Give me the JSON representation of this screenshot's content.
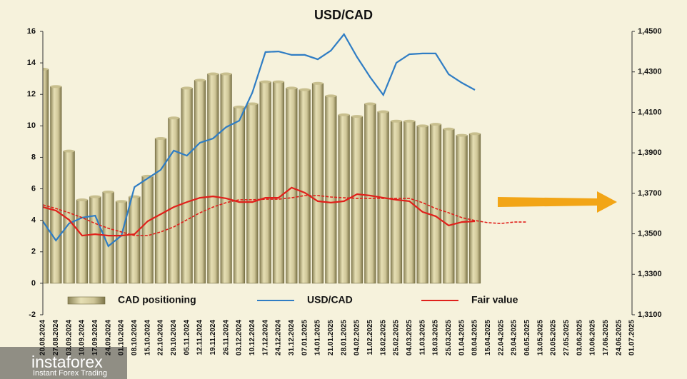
{
  "chart_data": {
    "type": "combo",
    "title": "USD/CAD",
    "categories": [
      "20.08.2024",
      "27.08.2024",
      "03.09.2024",
      "10.09.2024",
      "17.09.2024",
      "24.09.2024",
      "01.10.2024",
      "08.10.2024",
      "15.10.2024",
      "22.10.2024",
      "29.10.2024",
      "05.11.2024",
      "12.11.2024",
      "19.11.2024",
      "26.11.2024",
      "03.12.2024",
      "10.12.2024",
      "17.12.2024",
      "24.12.2024",
      "31.12.2024",
      "07.01.2025",
      "14.01.2025",
      "21.01.2025",
      "28.01.2025",
      "04.02.2025",
      "11.02.2025",
      "18.02.2025",
      "25.02.2025",
      "04.03.2025",
      "11.03.2025",
      "18.03.2025",
      "25.03.2025",
      "01.04.2025",
      "08.04.2025",
      "15.04.2025",
      "22.04.2025",
      "29.04.2025",
      "06.05.2025",
      "13.05.2025",
      "20.05.2025",
      "27.05.2025",
      "03.06.2025",
      "10.06.2025",
      "17.06.2025",
      "24.06.2025",
      "01.07.2025"
    ],
    "series": [
      {
        "name": "CAD positioning",
        "type": "bar",
        "color": "#c8bf8e",
        "values": [
          13.6,
          12.5,
          8.4,
          5.3,
          5.5,
          5.8,
          5.2,
          5.5,
          6.8,
          9.2,
          10.5,
          12.4,
          12.9,
          13.3,
          13.3,
          11.2,
          11.4,
          12.8,
          12.8,
          12.4,
          12.3,
          12.7,
          11.9,
          10.7,
          10.6,
          11.4,
          10.9,
          10.3,
          10.3,
          10.0,
          10.1,
          9.8,
          9.4,
          9.5,
          null,
          null,
          null,
          null,
          null,
          null,
          null,
          null,
          null,
          null,
          null,
          null
        ]
      },
      {
        "name": "USD/CAD",
        "type": "line",
        "axis": "y2",
        "color": "#2f7dc4",
        "values": [
          1.3562,
          1.3467,
          1.3551,
          1.358,
          1.359,
          1.3439,
          1.3491,
          1.3731,
          1.3774,
          1.3816,
          1.3911,
          1.3886,
          1.395,
          1.3971,
          1.4027,
          1.4059,
          1.4197,
          1.4398,
          1.4401,
          1.4384,
          1.4384,
          1.4362,
          1.4405,
          1.4486,
          1.4373,
          1.4274,
          1.4186,
          1.4345,
          1.4387,
          1.4391,
          1.4391,
          1.4288,
          1.4246,
          1.4211,
          null,
          null,
          null,
          null,
          null,
          null,
          null,
          null,
          null,
          null,
          null,
          null
        ]
      },
      {
        "name": "Fair value",
        "type": "line",
        "axis": "y2",
        "color": "#e0201b",
        "values": [
          1.3632,
          1.3615,
          1.3569,
          1.3491,
          1.3498,
          1.3491,
          1.3491,
          1.3498,
          1.3562,
          1.3597,
          1.3632,
          1.3657,
          1.3678,
          1.3685,
          1.3675,
          1.3657,
          1.3657,
          1.3678,
          1.3678,
          1.3728,
          1.3703,
          1.3661,
          1.3654,
          1.3661,
          1.3696,
          1.3689,
          1.3678,
          1.3668,
          1.3661,
          1.3608,
          1.3587,
          1.3541,
          1.3558,
          1.3562,
          null,
          null,
          null,
          null,
          null,
          null,
          null,
          null,
          null,
          null,
          null,
          null
        ]
      },
      {
        "type": "line",
        "axis": "y2",
        "color": "#e0201b",
        "dashed": true,
        "values": [
          1.3643,
          1.3625,
          1.3604,
          1.358,
          1.3551,
          1.3527,
          1.3509,
          1.3491,
          1.3491,
          1.3509,
          1.3534,
          1.3569,
          1.3604,
          1.3632,
          1.3654,
          1.3668,
          1.3668,
          1.3671,
          1.3671,
          1.3678,
          1.3689,
          1.3689,
          1.3682,
          1.3678,
          1.3675,
          1.3675,
          1.3675,
          1.3675,
          1.3675,
          1.3654,
          1.3625,
          1.3604,
          1.358,
          1.3566,
          1.3555,
          1.3551,
          1.3558,
          1.3558,
          null,
          null,
          null,
          null,
          null,
          null,
          null,
          null
        ]
      }
    ],
    "ylim": [
      -2,
      16
    ],
    "yticks": [
      -2,
      0,
      2,
      4,
      6,
      8,
      10,
      12,
      14,
      16
    ],
    "y2lim": [
      1.31,
      1.45
    ],
    "y2ticks": [
      {
        "value": 1.31,
        "label": "1,3100"
      },
      {
        "value": 1.33,
        "label": "1,3300"
      },
      {
        "value": 1.35,
        "label": "1,3500"
      },
      {
        "value": 1.37,
        "label": "1,3700"
      },
      {
        "value": 1.39,
        "label": "1,3900"
      },
      {
        "value": 1.41,
        "label": "1,4100"
      },
      {
        "value": 1.43,
        "label": "1,4300"
      },
      {
        "value": 1.45,
        "label": "1,4500"
      }
    ],
    "grid": false
  },
  "watermark": {
    "brand": "instaforex",
    "tagline": "Instant Forex Trading"
  }
}
